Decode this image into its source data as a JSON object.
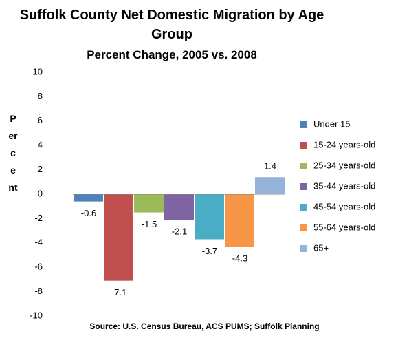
{
  "chart_data": {
    "type": "bar",
    "title": "Suffolk County Net Domestic Migration by Age Group",
    "subtitle": "Percent Change, 2005 vs. 2008",
    "y_label": "Percent",
    "source": "Source: U.S. Census Bureau, ACS PUMS; Suffolk Planning",
    "series": [
      {
        "name": "Under 15",
        "color": "#4f81bd",
        "values": [
          -0.6
        ]
      },
      {
        "name": "15-24 years-old",
        "color": "#c0504d",
        "values": [
          -7.1
        ]
      },
      {
        "name": "25-34 years-old",
        "color": "#9bbb59",
        "values": [
          -1.5
        ]
      },
      {
        "name": "35-44 years-old",
        "color": "#8064a2",
        "values": [
          -2.1
        ]
      },
      {
        "name": "45-54 years-old",
        "color": "#4bacc6",
        "values": [
          -3.7
        ]
      },
      {
        "name": "55-64 years-old",
        "color": "#f79646",
        "values": [
          -4.3
        ]
      },
      {
        "name": "65+",
        "color": "#95b3d7",
        "values": [
          1.4
        ]
      }
    ],
    "ylim": [
      -10,
      10
    ],
    "yticks": [
      -10,
      -8,
      -6,
      -4,
      -2,
      0,
      2,
      4,
      6,
      8,
      10
    ],
    "legend": "right"
  }
}
